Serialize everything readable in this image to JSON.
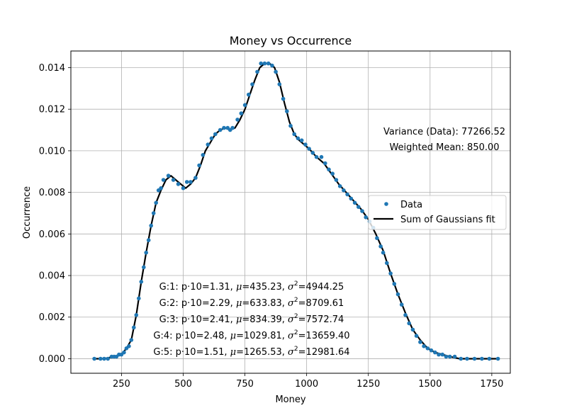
{
  "chart_data": {
    "type": "scatter",
    "title": "Money vs Occurrence",
    "xlabel": "Money",
    "ylabel": "Occurrence",
    "xlim": [
      45,
      1825
    ],
    "ylim": [
      -0.0007,
      0.0148
    ],
    "xticks": [
      250,
      500,
      750,
      1000,
      1250,
      1500,
      1750
    ],
    "yticks": [
      0.0,
      0.002,
      0.004,
      0.006,
      0.008,
      0.01,
      0.012,
      0.014
    ],
    "ytick_labels": [
      "0.000",
      "0.002",
      "0.004",
      "0.006",
      "0.008",
      "0.010",
      "0.012",
      "0.014"
    ],
    "grid": true,
    "legend_position": "center-right",
    "legend": [
      {
        "label": "Data",
        "marker": "dot",
        "color": "#1f77b4"
      },
      {
        "label": "Sum of Gaussians fit",
        "marker": "line",
        "color": "#000000"
      }
    ],
    "stats": [
      "Variance (Data): 77266.52",
      "Weighted Mean: 850.00"
    ],
    "gaussian_labels": [
      {
        "prefix": "G:1: p·10=1.31, ",
        "mu_eq": "=435.23, ",
        "sigma_eq": "=4944.25"
      },
      {
        "prefix": "G:2: p·10=2.29, ",
        "mu_eq": "=633.83, ",
        "sigma_eq": "=8709.61"
      },
      {
        "prefix": "G:3: p·10=2.41, ",
        "mu_eq": "=834.39, ",
        "sigma_eq": "=7572.74"
      },
      {
        "prefix": "G:4: p·10=2.48, ",
        "mu_eq": "=1029.81, ",
        "sigma_eq": "=13659.40"
      },
      {
        "prefix": "G:5: p·10=1.51, ",
        "mu_eq": "=1265.53, ",
        "sigma_eq": "=12981.64"
      }
    ],
    "series": [
      {
        "name": "Data",
        "kind": "scatter",
        "color": "#1f77b4",
        "x": [
          140,
          165,
          180,
          195,
          210,
          220,
          230,
          240,
          250,
          260,
          270,
          280,
          290,
          300,
          310,
          320,
          330,
          340,
          350,
          360,
          370,
          380,
          390,
          400,
          410,
          420,
          440,
          460,
          480,
          500,
          515,
          530,
          550,
          565,
          580,
          600,
          615,
          630,
          650,
          665,
          680,
          690,
          700,
          720,
          735,
          750,
          765,
          780,
          800,
          815,
          830,
          845,
          860,
          875,
          890,
          905,
          920,
          935,
          950,
          965,
          980,
          995,
          1010,
          1025,
          1040,
          1060,
          1075,
          1090,
          1105,
          1120,
          1135,
          1150,
          1165,
          1180,
          1195,
          1210,
          1225,
          1240,
          1255,
          1270,
          1285,
          1300,
          1310,
          1325,
          1340,
          1355,
          1370,
          1385,
          1400,
          1415,
          1430,
          1445,
          1460,
          1475,
          1490,
          1505,
          1520,
          1535,
          1550,
          1565,
          1580,
          1600,
          1625,
          1650,
          1680,
          1710,
          1740,
          1775
        ],
        "y": [
          0.0,
          0.0,
          0.0,
          0.0,
          0.0001,
          0.0001,
          0.0001,
          0.0002,
          0.0002,
          0.0003,
          0.0005,
          0.0006,
          0.0009,
          0.0015,
          0.0021,
          0.0029,
          0.0037,
          0.0044,
          0.0051,
          0.0057,
          0.0064,
          0.007,
          0.0075,
          0.0081,
          0.0082,
          0.0086,
          0.0088,
          0.0086,
          0.0084,
          0.0082,
          0.0085,
          0.0085,
          0.0087,
          0.0093,
          0.0098,
          0.0103,
          0.0106,
          0.0108,
          0.011,
          0.0111,
          0.0111,
          0.011,
          0.0111,
          0.0115,
          0.0118,
          0.0122,
          0.0127,
          0.0132,
          0.0138,
          0.0142,
          0.0142,
          0.0142,
          0.0141,
          0.0138,
          0.0132,
          0.0125,
          0.0119,
          0.0112,
          0.0108,
          0.0106,
          0.0105,
          0.0103,
          0.0101,
          0.0099,
          0.0097,
          0.0097,
          0.0094,
          0.0091,
          0.0089,
          0.0086,
          0.0083,
          0.0081,
          0.0079,
          0.0077,
          0.0075,
          0.0073,
          0.0071,
          0.0068,
          0.0066,
          0.0063,
          0.0058,
          0.0054,
          0.0051,
          0.0046,
          0.0041,
          0.0036,
          0.0031,
          0.0026,
          0.0021,
          0.0017,
          0.0014,
          0.0011,
          0.0008,
          0.0006,
          0.0005,
          0.0004,
          0.0003,
          0.0002,
          0.0002,
          0.0001,
          0.0001,
          0.0001,
          0.0,
          0.0,
          0.0,
          0.0,
          0.0,
          0.0
        ]
      },
      {
        "name": "Sum of Gaussians fit",
        "kind": "line",
        "color": "#000000",
        "x": [
          140,
          180,
          220,
          250,
          270,
          290,
          310,
          330,
          350,
          370,
          390,
          410,
          430,
          450,
          470,
          490,
          510,
          530,
          550,
          570,
          590,
          610,
          630,
          650,
          670,
          690,
          710,
          730,
          750,
          770,
          790,
          810,
          830,
          850,
          870,
          890,
          910,
          930,
          950,
          970,
          990,
          1010,
          1040,
          1070,
          1100,
          1130,
          1160,
          1190,
          1220,
          1250,
          1280,
          1310,
          1340,
          1370,
          1400,
          1430,
          1460,
          1490,
          1520,
          1550,
          1580,
          1620,
          1670,
          1720,
          1775
        ],
        "y": [
          0.0,
          0.0,
          0.0001,
          0.0002,
          0.0005,
          0.0009,
          0.0021,
          0.0037,
          0.0051,
          0.0064,
          0.0075,
          0.0081,
          0.0086,
          0.0088,
          0.0086,
          0.0084,
          0.0082,
          0.0084,
          0.0087,
          0.0093,
          0.01,
          0.0104,
          0.0108,
          0.011,
          0.0111,
          0.011,
          0.0111,
          0.0115,
          0.012,
          0.0127,
          0.0134,
          0.014,
          0.0142,
          0.0142,
          0.014,
          0.0133,
          0.0123,
          0.0114,
          0.0108,
          0.0105,
          0.0103,
          0.0101,
          0.0097,
          0.0094,
          0.0089,
          0.0084,
          0.008,
          0.0076,
          0.0072,
          0.0067,
          0.006,
          0.0052,
          0.0041,
          0.0031,
          0.0022,
          0.0014,
          0.0009,
          0.0005,
          0.0003,
          0.0002,
          0.0001,
          0.0,
          0.0,
          0.0,
          0.0
        ]
      }
    ]
  }
}
